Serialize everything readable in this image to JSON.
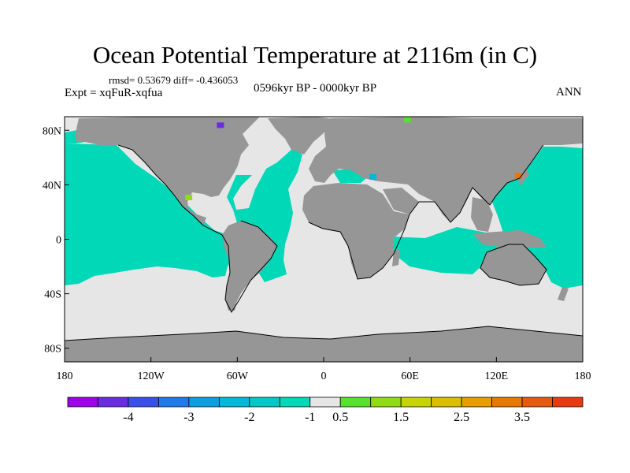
{
  "title": "Ocean Potential Temperature at 2116m (in C)",
  "stats": {
    "text": "rmsd= 0.53679  diff= -0.436053"
  },
  "experiment": "Expt = xqFuR-xqfua",
  "period": "0596kyr BP - 0000kyr BP",
  "season": "ANN",
  "colors": {
    "land": "#969696",
    "near_zero": "#e6e6e6",
    "cool": "#00d8b8",
    "coast": "#000000"
  },
  "map": {
    "lon_ticks": [
      "180",
      "120W",
      "60W",
      "0",
      "60E",
      "120E",
      "180"
    ],
    "lat_ticks": [
      "80N",
      "40N",
      "0",
      "40S",
      "80S"
    ]
  },
  "chart_data": {
    "type": "heatmap",
    "projection": "cylindrical-equidistant",
    "lon_range": [
      -180,
      180
    ],
    "lat_range": [
      -90,
      90
    ],
    "colorbar": {
      "boundary_labels": [
        "-4",
        "-3",
        "-2",
        "-1",
        "0.5",
        "1.5",
        "2.5",
        "3.5"
      ],
      "colors": [
        "#9b00e6",
        "#6a2ce0",
        "#3850e8",
        "#1f79e6",
        "#0aa0e0",
        "#00b8d8",
        "#00c8c8",
        "#00d8b8",
        "#e6e6e6",
        "#58e02e",
        "#8fdc14",
        "#c8d400",
        "#dcbe00",
        "#e69e00",
        "#e67a00",
        "#e65a10",
        "#e63a10"
      ]
    },
    "anomaly_patches": [
      {
        "lon": -72,
        "lat": 84,
        "color": "#6a2ce0"
      },
      {
        "lon": -94,
        "lat": 31,
        "color": "#8fdc14"
      },
      {
        "lon": 135,
        "lat": 47,
        "color": "#e67a00"
      },
      {
        "lon": 34,
        "lat": 46,
        "color": "#00b8d8"
      },
      {
        "lon": 58,
        "lat": 88,
        "color": "#58e02e"
      }
    ]
  }
}
